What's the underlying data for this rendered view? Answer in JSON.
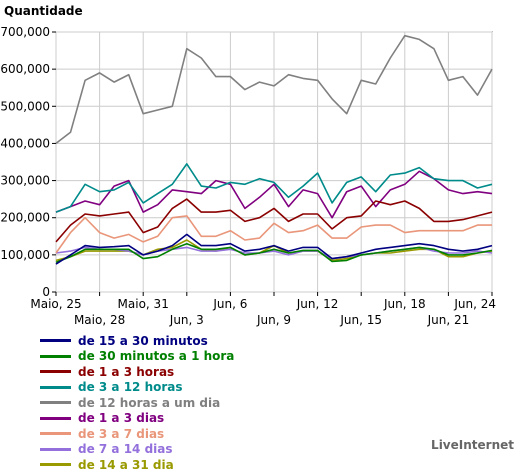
{
  "chart_data": {
    "type": "line",
    "ylabel": "Quantidade",
    "ylim": [
      0,
      700000
    ],
    "yticks": [
      "0",
      "100,000",
      "200,000",
      "300,000",
      "400,000",
      "500,000",
      "600,000",
      "700,000"
    ],
    "grid": true,
    "legend_position": "bottom",
    "x_labels_row1": [
      "Maio, 25",
      "Maio, 31",
      "Jun, 6",
      "Jun, 12",
      "Jun, 18",
      "Jun, 24"
    ],
    "x_labels_row2": [
      "Maio, 28",
      "Jun, 3",
      "Jun, 9",
      "Jun, 15",
      "Jun, 21"
    ],
    "x": [
      "Maio 25",
      "Maio 26",
      "Maio 27",
      "Maio 28",
      "Maio 29",
      "Maio 30",
      "Maio 31",
      "Jun 1",
      "Jun 2",
      "Jun 3",
      "Jun 4",
      "Jun 5",
      "Jun 6",
      "Jun 7",
      "Jun 8",
      "Jun 9",
      "Jun 10",
      "Jun 11",
      "Jun 12",
      "Jun 13",
      "Jun 14",
      "Jun 15",
      "Jun 16",
      "Jun 17",
      "Jun 18",
      "Jun 19",
      "Jun 20",
      "Jun 21",
      "Jun 22",
      "Jun 23",
      "Jun 24"
    ],
    "series": [
      {
        "name": "de 15 a 30 minutos",
        "color": "#000080",
        "values": [
          75000,
          100000,
          125000,
          120000,
          122000,
          125000,
          100000,
          110000,
          125000,
          155000,
          125000,
          125000,
          130000,
          110000,
          115000,
          125000,
          110000,
          120000,
          120000,
          90000,
          95000,
          105000,
          115000,
          120000,
          125000,
          130000,
          125000,
          115000,
          110000,
          115000,
          125000
        ]
      },
      {
        "name": "de 30 minutos a 1 hora",
        "color": "#008000",
        "values": [
          80000,
          95000,
          115000,
          115000,
          115000,
          115000,
          90000,
          95000,
          115000,
          130000,
          115000,
          115000,
          120000,
          100000,
          105000,
          115000,
          105000,
          112000,
          112000,
          82000,
          85000,
          100000,
          105000,
          110000,
          115000,
          120000,
          115000,
          100000,
          100000,
          105000,
          112000
        ]
      },
      {
        "name": "de 1 a 3 horas",
        "color": "#8b0000",
        "values": [
          135000,
          180000,
          210000,
          205000,
          210000,
          215000,
          160000,
          175000,
          225000,
          250000,
          215000,
          215000,
          220000,
          190000,
          200000,
          225000,
          190000,
          210000,
          210000,
          170000,
          200000,
          205000,
          245000,
          235000,
          245000,
          225000,
          190000,
          190000,
          195000,
          205000,
          215000
        ]
      },
      {
        "name": "de 3 a 12 horas",
        "color": "#008b8b",
        "values": [
          215000,
          230000,
          290000,
          270000,
          275000,
          295000,
          240000,
          265000,
          290000,
          345000,
          285000,
          280000,
          295000,
          290000,
          305000,
          295000,
          255000,
          285000,
          320000,
          240000,
          295000,
          310000,
          270000,
          315000,
          320000,
          335000,
          305000,
          300000,
          300000,
          280000,
          290000
        ]
      },
      {
        "name": "de 12 horas a um dia",
        "color": "#808080",
        "values": [
          400000,
          430000,
          570000,
          590000,
          565000,
          585000,
          480000,
          490000,
          500000,
          655000,
          630000,
          580000,
          580000,
          545000,
          565000,
          555000,
          585000,
          575000,
          570000,
          520000,
          480000,
          570000,
          560000,
          630000,
          690000,
          680000,
          655000,
          570000,
          580000,
          530000,
          600000
        ]
      },
      {
        "name": "de 1 a 3 dias",
        "color": "#800080",
        "values": [
          215000,
          230000,
          245000,
          235000,
          285000,
          300000,
          215000,
          235000,
          275000,
          270000,
          265000,
          300000,
          290000,
          225000,
          255000,
          290000,
          230000,
          275000,
          265000,
          200000,
          270000,
          285000,
          230000,
          275000,
          290000,
          325000,
          305000,
          275000,
          265000,
          270000,
          265000
        ]
      },
      {
        "name": "de 3 a 7 dias",
        "color": "#e9967a",
        "values": [
          105000,
          160000,
          200000,
          160000,
          145000,
          155000,
          135000,
          150000,
          200000,
          205000,
          150000,
          150000,
          165000,
          140000,
          145000,
          185000,
          160000,
          165000,
          180000,
          145000,
          145000,
          175000,
          180000,
          180000,
          160000,
          165000,
          165000,
          165000,
          165000,
          180000,
          180000
        ]
      },
      {
        "name": "de 7 a 14 dias",
        "color": "#9370db",
        "values": [
          105000,
          110000,
          120000,
          115000,
          115000,
          110000,
          100000,
          110000,
          115000,
          120000,
          110000,
          110000,
          115000,
          105000,
          105000,
          110000,
          100000,
          110000,
          110000,
          90000,
          95000,
          100000,
          105000,
          110000,
          115000,
          120000,
          110000,
          105000,
          105000,
          110000,
          105000
        ]
      },
      {
        "name": "de 14 a 31 dia",
        "color": "#999900",
        "values": [
          85000,
          95000,
          110000,
          110000,
          110000,
          110000,
          100000,
          115000,
          120000,
          140000,
          115000,
          110000,
          120000,
          100000,
          105000,
          125000,
          105000,
          110000,
          110000,
          85000,
          90000,
          100000,
          105000,
          105000,
          110000,
          115000,
          115000,
          95000,
          95000,
          105000,
          110000
        ]
      }
    ]
  },
  "brand": "LiveInternet"
}
